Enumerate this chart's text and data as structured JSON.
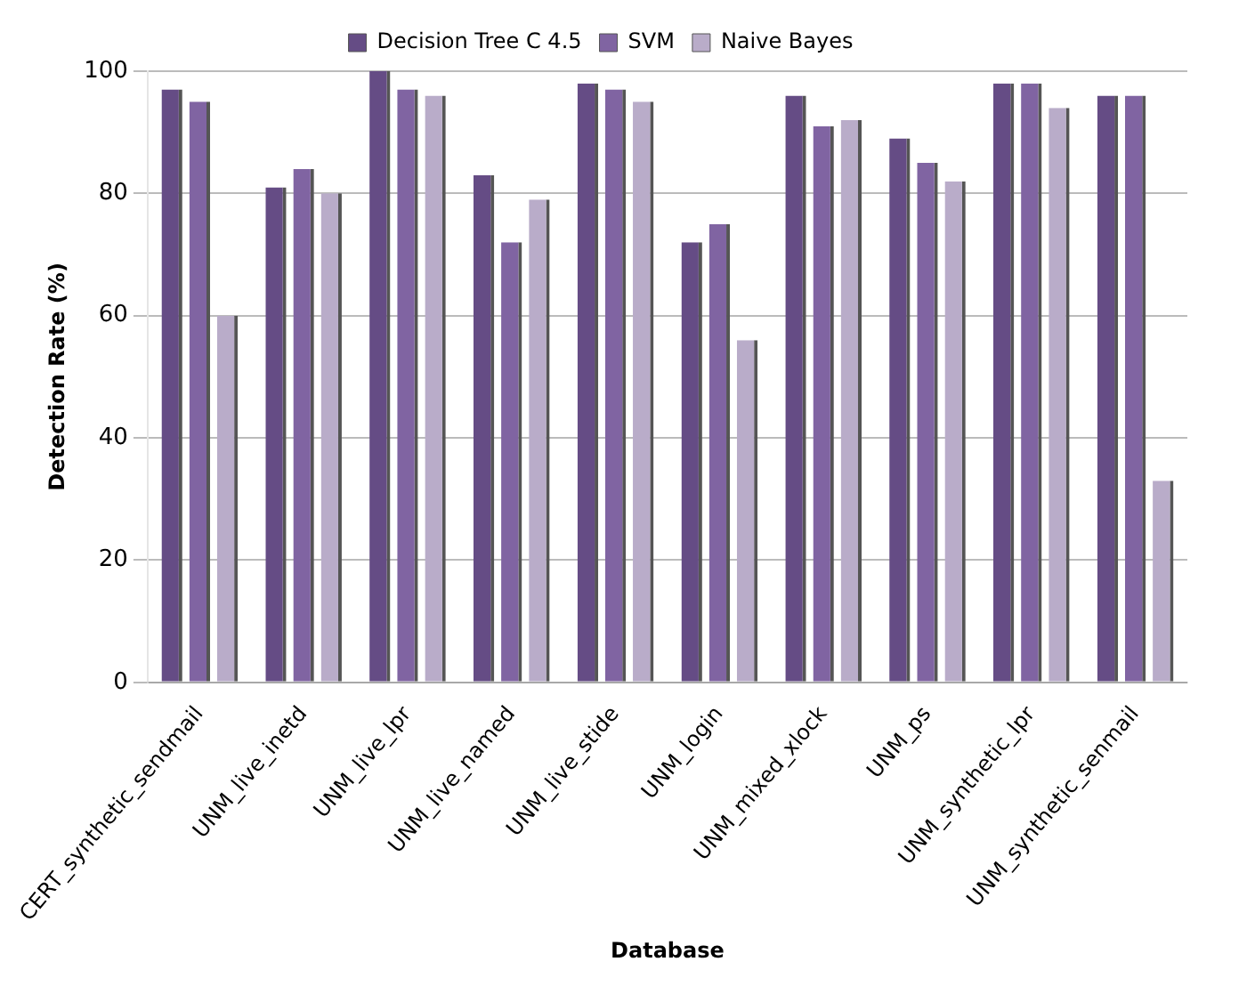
{
  "chart_data": {
    "type": "bar",
    "xlabel": "Database",
    "ylabel": "Detection Rate (%)",
    "categories": [
      "CERT_synthetic_sendmail",
      "UNM_live_inetd",
      "UNM_live_lpr",
      "UNM_live_named",
      "UNM_live_stide",
      "UNM_login",
      "UNM_mixed_xlock",
      "UNM_ps",
      "UNM_synthetic_lpr",
      "UNM_synthetic_senmail"
    ],
    "series": [
      {
        "name": "Decision Tree C 4.5",
        "color": "#654c85",
        "values": [
          97,
          81,
          100,
          83,
          98,
          72,
          96,
          89,
          98,
          96
        ]
      },
      {
        "name": "SVM",
        "color": "#8064a2",
        "values": [
          95,
          84,
          97,
          72,
          97,
          75,
          91,
          85,
          98,
          96
        ]
      },
      {
        "name": "Naive Bayes",
        "color": "#b9acc9",
        "values": [
          60,
          80,
          96,
          79,
          95,
          56,
          92,
          82,
          94,
          33
        ]
      }
    ],
    "ylim": [
      0,
      100
    ],
    "yticks": [
      0,
      20,
      40,
      60,
      80,
      100
    ],
    "grid": "y",
    "legend": "top"
  }
}
